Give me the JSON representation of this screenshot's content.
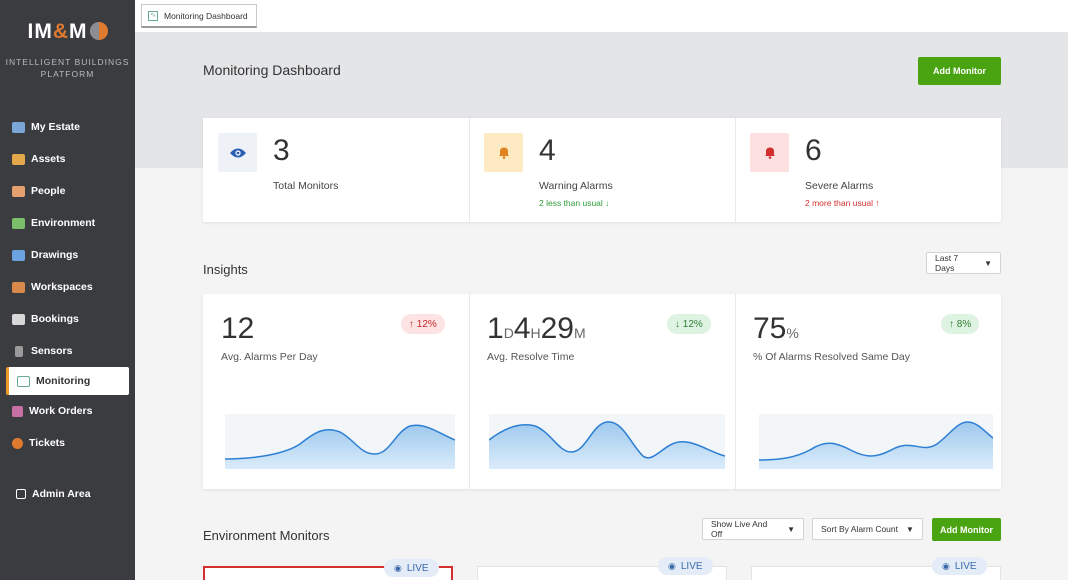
{
  "sidebar": {
    "logo": {
      "left": "IM",
      "amp": "&",
      "right": "M"
    },
    "tagline_1": "INTELLIGENT BUILDINGS",
    "tagline_2": "PLATFORM",
    "items": [
      {
        "label": "My Estate",
        "icon": "building-icon",
        "color": "#7aa6d8"
      },
      {
        "label": "Assets",
        "icon": "box-icon",
        "color": "#e3a84a"
      },
      {
        "label": "People",
        "icon": "people-icon",
        "color": "#e5a070"
      },
      {
        "label": "Environment",
        "icon": "leaf-icon",
        "color": "#7bbf6a"
      },
      {
        "label": "Drawings",
        "icon": "drawing-icon",
        "color": "#6aa3e0"
      },
      {
        "label": "Workspaces",
        "icon": "desk-icon",
        "color": "#d9894a"
      },
      {
        "label": "Bookings",
        "icon": "calendar-icon",
        "color": "#d8d8d8"
      },
      {
        "label": "Sensors",
        "icon": "sensor-icon",
        "color": "#9a9a9a"
      },
      {
        "label": "Monitoring",
        "icon": "monitor-icon",
        "color": "#6a9",
        "active": true
      },
      {
        "label": "Work Orders",
        "icon": "clipboard-icon",
        "color": "#c86fa3"
      },
      {
        "label": "Tickets",
        "icon": "ticket-icon",
        "color": "#e07a2f"
      }
    ],
    "admin_label": "Admin Area"
  },
  "topbar": {
    "tab_label": "Monitoring Dashboard"
  },
  "header": {
    "title": "Monitoring Dashboard",
    "add_monitor_label": "Add Monitor"
  },
  "stats": [
    {
      "value": "3",
      "label": "Total Monitors",
      "sub": "",
      "icon": "eye-icon"
    },
    {
      "value": "4",
      "label": "Warning Alarms",
      "sub": "2 less than usual ↓",
      "icon": "bell-icon"
    },
    {
      "value": "6",
      "label": "Severe Alarms",
      "sub": "2 more than usual ↑",
      "icon": "bell-icon"
    }
  ],
  "insights": {
    "title": "Insights",
    "range_label": "Last 7 Days",
    "cards": [
      {
        "value": "12",
        "label": "Avg. Alarms Per Day",
        "change": "↑ 12%"
      },
      {
        "d": "1",
        "d_unit": "D",
        "h": "4",
        "h_unit": "H",
        "m": "29",
        "m_unit": "M",
        "label": "Avg. Resolve Time",
        "change": "↓ 12%"
      },
      {
        "value": "75",
        "unit": "%",
        "label": "% Of Alarms Resolved Same Day",
        "change": "↑ 8%"
      }
    ]
  },
  "environment": {
    "title": "Environment Monitors",
    "filter_label": "Show Live And Off",
    "sort_label": "Sort By Alarm Count",
    "add_label": "Add Monitor",
    "live_label": "LIVE"
  },
  "colors": {
    "accent_green": "#4aa310",
    "sidebar": "#3a3c40",
    "severe": "#d32f2f",
    "warning": "#f59e0b"
  }
}
